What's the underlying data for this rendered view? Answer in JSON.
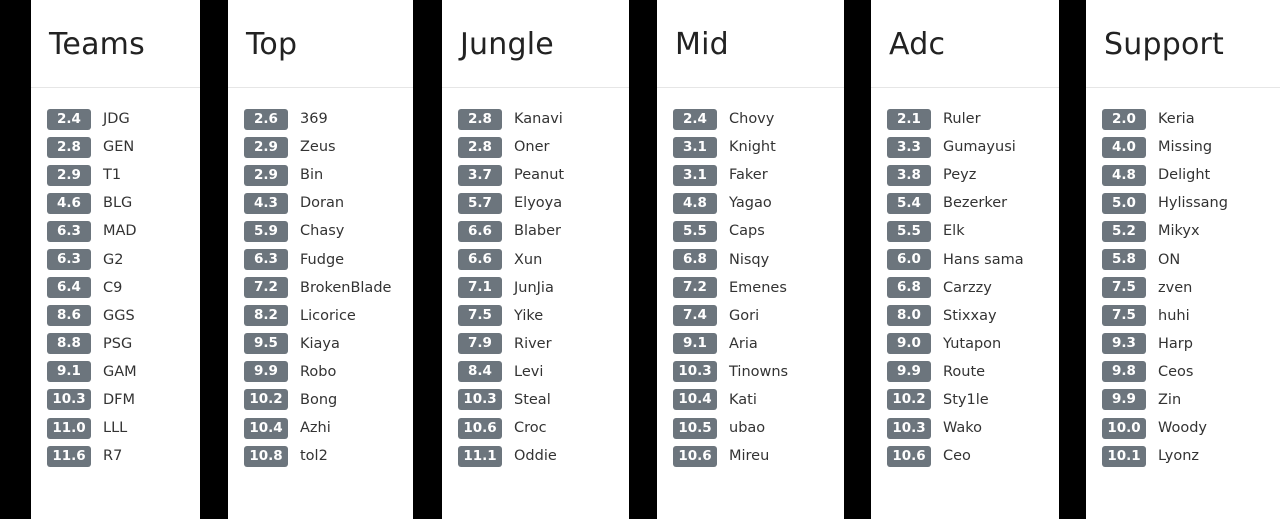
{
  "columns": [
    {
      "title": "Teams",
      "items": [
        {
          "score": "2.4",
          "name": "JDG"
        },
        {
          "score": "2.8",
          "name": "GEN"
        },
        {
          "score": "2.9",
          "name": "T1"
        },
        {
          "score": "4.6",
          "name": "BLG"
        },
        {
          "score": "6.3",
          "name": "MAD"
        },
        {
          "score": "6.3",
          "name": "G2"
        },
        {
          "score": "6.4",
          "name": "C9"
        },
        {
          "score": "8.6",
          "name": "GGS"
        },
        {
          "score": "8.8",
          "name": "PSG"
        },
        {
          "score": "9.1",
          "name": "GAM"
        },
        {
          "score": "10.3",
          "name": "DFM"
        },
        {
          "score": "11.0",
          "name": "LLL"
        },
        {
          "score": "11.6",
          "name": "R7"
        }
      ]
    },
    {
      "title": "Top",
      "items": [
        {
          "score": "2.6",
          "name": "369"
        },
        {
          "score": "2.9",
          "name": "Zeus"
        },
        {
          "score": "2.9",
          "name": "Bin"
        },
        {
          "score": "4.3",
          "name": "Doran"
        },
        {
          "score": "5.9",
          "name": "Chasy"
        },
        {
          "score": "6.3",
          "name": "Fudge"
        },
        {
          "score": "7.2",
          "name": "BrokenBlade"
        },
        {
          "score": "8.2",
          "name": "Licorice"
        },
        {
          "score": "9.5",
          "name": "Kiaya"
        },
        {
          "score": "9.9",
          "name": "Robo"
        },
        {
          "score": "10.2",
          "name": "Bong"
        },
        {
          "score": "10.4",
          "name": "Azhi"
        },
        {
          "score": "10.8",
          "name": "tol2"
        }
      ]
    },
    {
      "title": "Jungle",
      "items": [
        {
          "score": "2.8",
          "name": "Kanavi"
        },
        {
          "score": "2.8",
          "name": "Oner"
        },
        {
          "score": "3.7",
          "name": "Peanut"
        },
        {
          "score": "5.7",
          "name": "Elyoya"
        },
        {
          "score": "6.6",
          "name": "Blaber"
        },
        {
          "score": "6.6",
          "name": "Xun"
        },
        {
          "score": "7.1",
          "name": "JunJia"
        },
        {
          "score": "7.5",
          "name": "Yike"
        },
        {
          "score": "7.9",
          "name": "River"
        },
        {
          "score": "8.4",
          "name": "Levi"
        },
        {
          "score": "10.3",
          "name": "Steal"
        },
        {
          "score": "10.6",
          "name": "Croc"
        },
        {
          "score": "11.1",
          "name": "Oddie"
        }
      ]
    },
    {
      "title": "Mid",
      "items": [
        {
          "score": "2.4",
          "name": "Chovy"
        },
        {
          "score": "3.1",
          "name": "Knight"
        },
        {
          "score": "3.1",
          "name": "Faker"
        },
        {
          "score": "4.8",
          "name": "Yagao"
        },
        {
          "score": "5.5",
          "name": "Caps"
        },
        {
          "score": "6.8",
          "name": "Nisqy"
        },
        {
          "score": "7.2",
          "name": "Emenes"
        },
        {
          "score": "7.4",
          "name": "Gori"
        },
        {
          "score": "9.1",
          "name": "Aria"
        },
        {
          "score": "10.3",
          "name": "Tinowns"
        },
        {
          "score": "10.4",
          "name": "Kati"
        },
        {
          "score": "10.5",
          "name": "ubao"
        },
        {
          "score": "10.6",
          "name": "Mireu"
        }
      ]
    },
    {
      "title": "Adc",
      "items": [
        {
          "score": "2.1",
          "name": "Ruler"
        },
        {
          "score": "3.3",
          "name": "Gumayusi"
        },
        {
          "score": "3.8",
          "name": "Peyz"
        },
        {
          "score": "5.4",
          "name": "Bezerker"
        },
        {
          "score": "5.5",
          "name": "Elk"
        },
        {
          "score": "6.0",
          "name": "Hans sama"
        },
        {
          "score": "6.8",
          "name": "Carzzy"
        },
        {
          "score": "8.0",
          "name": "Stixxay"
        },
        {
          "score": "9.0",
          "name": "Yutapon"
        },
        {
          "score": "9.9",
          "name": "Route"
        },
        {
          "score": "10.2",
          "name": "Sty1le"
        },
        {
          "score": "10.3",
          "name": "Wako"
        },
        {
          "score": "10.6",
          "name": "Ceo"
        }
      ]
    },
    {
      "title": "Support",
      "items": [
        {
          "score": "2.0",
          "name": "Keria"
        },
        {
          "score": "4.0",
          "name": "Missing"
        },
        {
          "score": "4.8",
          "name": "Delight"
        },
        {
          "score": "5.0",
          "name": "Hylissang"
        },
        {
          "score": "5.2",
          "name": "Mikyx"
        },
        {
          "score": "5.8",
          "name": "ON"
        },
        {
          "score": "7.5",
          "name": "zven"
        },
        {
          "score": "7.5",
          "name": "huhi"
        },
        {
          "score": "9.3",
          "name": "Harp"
        },
        {
          "score": "9.8",
          "name": "Ceos"
        },
        {
          "score": "9.9",
          "name": "Zin"
        },
        {
          "score": "10.0",
          "name": "Woody"
        },
        {
          "score": "10.1",
          "name": "Lyonz"
        }
      ]
    }
  ],
  "colors": {
    "badge": "#6c757d",
    "badge_text": "#ffffff",
    "separator": "#000000"
  }
}
